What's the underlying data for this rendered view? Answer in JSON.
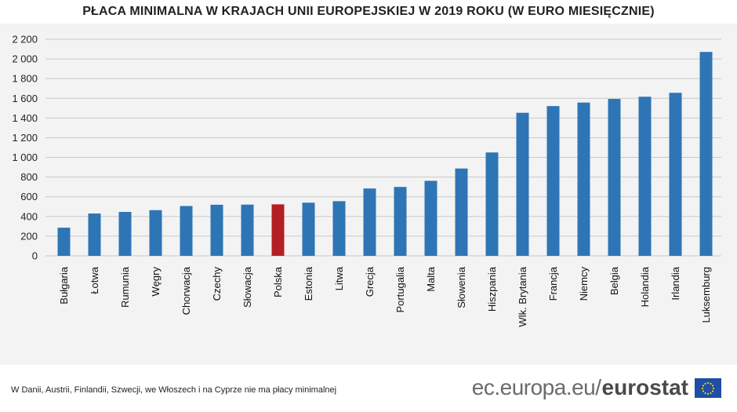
{
  "chart_data": {
    "type": "bar",
    "title": "PŁACA MINIMALNA W KRAJACH UNII EUROPEJSKIEJ W 2019 ROKU (W EURO MIESIĘCZNIE)",
    "xlabel": "",
    "ylabel": "",
    "ylim": [
      0,
      2200
    ],
    "yticks": [
      0,
      200,
      400,
      600,
      800,
      1000,
      1200,
      1400,
      1600,
      1800,
      2000,
      2200
    ],
    "ytick_labels": [
      "0",
      "200",
      "400",
      "600",
      "800",
      "1 000",
      "1 200",
      "1 400",
      "1 600",
      "1 800",
      "2 000",
      "2 200"
    ],
    "grid": true,
    "categories": [
      "Bułgaria",
      "Łotwa",
      "Rumunia",
      "Węgry",
      "Chorwacja",
      "Czechy",
      "Słowacja",
      "Polska",
      "Estonia",
      "Litwa",
      "Grecja",
      "Portugalia",
      "Malta",
      "Słowenia",
      "Hiszpania",
      "Wlk. Brytania",
      "Francja",
      "Niemcy",
      "Belgia",
      "Holandia",
      "Irlandia",
      "Luksemburg"
    ],
    "values": [
      286,
      430,
      446,
      464,
      506,
      519,
      520,
      523,
      540,
      555,
      684,
      700,
      762,
      887,
      1050,
      1453,
      1521,
      1557,
      1594,
      1616,
      1656,
      2071
    ],
    "highlight": "Polska",
    "colors": {
      "bar": "#2e75b6",
      "highlight": "#b41f24"
    }
  },
  "footer": {
    "note": "W Danii, Austrii, Finlandii, Szwecji, we Włoszech i na Cyprze nie ma płacy minimalnej",
    "domain": "ec.europa.eu/",
    "brand": "eurostat"
  },
  "colors": {
    "eu_flag_blue": "#1f4ea5",
    "eu_star": "#ffd200"
  }
}
